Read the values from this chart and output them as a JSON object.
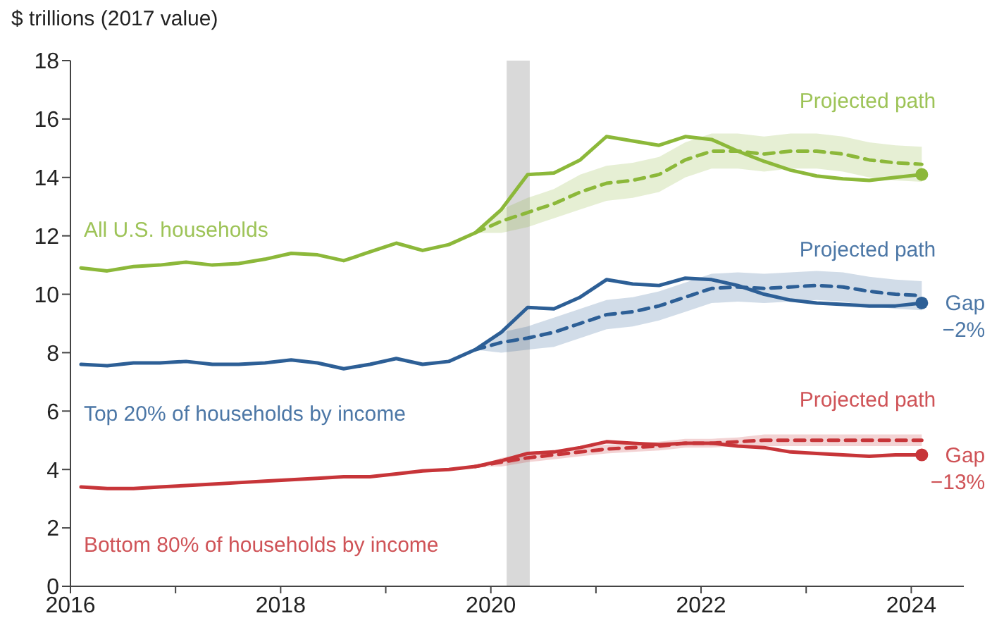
{
  "chart_data": {
    "type": "line",
    "ylabel": "$ trillions (2017 value)",
    "xlim": [
      2016,
      2024.5
    ],
    "xticks": [
      2016,
      {
        "value": 2017,
        "label": null
      },
      2018,
      {
        "value": 2019,
        "label": null
      },
      2020,
      {
        "value": 2021,
        "label": null
      },
      2022,
      {
        "value": 2023,
        "label": null
      },
      2024
    ],
    "ylim": [
      0,
      18
    ],
    "yticks": [
      0,
      2,
      4,
      6,
      8,
      10,
      12,
      14,
      16,
      18
    ],
    "grid": false,
    "legend": false,
    "bands": [
      {
        "axis": "x",
        "from": 2020.15,
        "to": 2020.37,
        "color": "#d9d9d9"
      }
    ],
    "series": [
      {
        "name": "All U.S. households",
        "type": "line",
        "color": "#8cb83a",
        "line_style": "solid",
        "x": [
          2016.1,
          2016.35,
          2016.6,
          2016.85,
          2017.1,
          2017.35,
          2017.6,
          2017.85,
          2018.1,
          2018.35,
          2018.6,
          2018.85,
          2019.1,
          2019.35,
          2019.6,
          2019.85,
          2020.1,
          2020.35,
          2020.6,
          2020.85,
          2021.1,
          2021.35,
          2021.6,
          2021.85,
          2022.1,
          2022.35,
          2022.6,
          2022.85,
          2023.1,
          2023.35,
          2023.6,
          2023.85,
          2024.1
        ],
        "values": [
          10.9,
          10.8,
          10.95,
          11.0,
          11.1,
          11.0,
          11.05,
          11.2,
          11.4,
          11.35,
          11.15,
          11.45,
          11.75,
          11.5,
          11.7,
          12.1,
          12.9,
          14.1,
          14.15,
          14.6,
          15.4,
          15.25,
          15.1,
          15.4,
          15.3,
          14.9,
          14.55,
          14.25,
          14.05,
          13.95,
          13.9,
          14.0,
          14.1
        ]
      },
      {
        "name": "Projected path",
        "type": "line",
        "color": "#8cb83a",
        "line_style": "dashed",
        "x": [
          2019.85,
          2020.1,
          2020.35,
          2020.6,
          2020.85,
          2021.1,
          2021.35,
          2021.6,
          2021.85,
          2022.1,
          2022.35,
          2022.6,
          2022.85,
          2023.1,
          2023.35,
          2023.6,
          2023.85,
          2024.1
        ],
        "values": [
          12.1,
          12.5,
          12.8,
          13.1,
          13.5,
          13.8,
          13.9,
          14.1,
          14.6,
          14.9,
          14.9,
          14.8,
          14.9,
          14.9,
          14.8,
          14.6,
          14.5,
          14.45
        ],
        "lower": [
          12.1,
          12.1,
          12.3,
          12.6,
          12.9,
          13.2,
          13.3,
          13.5,
          14.0,
          14.3,
          14.3,
          14.2,
          14.3,
          14.3,
          14.2,
          14.0,
          13.9,
          13.85
        ],
        "upper": [
          12.1,
          12.9,
          13.3,
          13.6,
          14.1,
          14.4,
          14.5,
          14.7,
          15.2,
          15.5,
          15.5,
          15.4,
          15.5,
          15.5,
          15.4,
          15.2,
          15.1,
          15.05
        ]
      },
      {
        "name": "Top 20% of households by income",
        "type": "line",
        "color": "#2d5f96",
        "line_style": "solid",
        "x": [
          2016.1,
          2016.35,
          2016.6,
          2016.85,
          2017.1,
          2017.35,
          2017.6,
          2017.85,
          2018.1,
          2018.35,
          2018.6,
          2018.85,
          2019.1,
          2019.35,
          2019.6,
          2019.85,
          2020.1,
          2020.35,
          2020.6,
          2020.85,
          2021.1,
          2021.35,
          2021.6,
          2021.85,
          2022.1,
          2022.35,
          2022.6,
          2022.85,
          2023.1,
          2023.35,
          2023.6,
          2023.85,
          2024.1
        ],
        "values": [
          7.6,
          7.55,
          7.65,
          7.65,
          7.7,
          7.6,
          7.6,
          7.65,
          7.75,
          7.65,
          7.45,
          7.6,
          7.8,
          7.6,
          7.7,
          8.1,
          8.7,
          9.55,
          9.5,
          9.9,
          10.5,
          10.35,
          10.3,
          10.55,
          10.5,
          10.3,
          10.0,
          9.8,
          9.7,
          9.65,
          9.6,
          9.6,
          9.7
        ]
      },
      {
        "name": "Projected path",
        "type": "line",
        "color": "#2d5f96",
        "line_style": "dashed",
        "x": [
          2019.85,
          2020.1,
          2020.35,
          2020.6,
          2020.85,
          2021.1,
          2021.35,
          2021.6,
          2021.85,
          2022.1,
          2022.35,
          2022.6,
          2022.85,
          2023.1,
          2023.35,
          2023.6,
          2023.85,
          2024.1
        ],
        "values": [
          8.1,
          8.35,
          8.5,
          8.7,
          9.0,
          9.3,
          9.4,
          9.6,
          9.9,
          10.2,
          10.25,
          10.2,
          10.25,
          10.3,
          10.25,
          10.1,
          10.0,
          9.95
        ],
        "lower": [
          8.1,
          8.0,
          8.1,
          8.2,
          8.5,
          8.8,
          8.9,
          9.1,
          9.4,
          9.7,
          9.75,
          9.7,
          9.75,
          9.8,
          9.75,
          9.6,
          9.5,
          9.45
        ],
        "upper": [
          8.1,
          8.7,
          8.9,
          9.2,
          9.5,
          9.8,
          9.9,
          10.1,
          10.4,
          10.7,
          10.75,
          10.7,
          10.75,
          10.8,
          10.75,
          10.6,
          10.5,
          10.45
        ]
      },
      {
        "name": "Bottom 80% of households by income",
        "type": "line",
        "color": "#c73539",
        "line_style": "solid",
        "x": [
          2016.1,
          2016.35,
          2016.6,
          2016.85,
          2017.1,
          2017.35,
          2017.6,
          2017.85,
          2018.1,
          2018.35,
          2018.6,
          2018.85,
          2019.1,
          2019.35,
          2019.6,
          2019.85,
          2020.1,
          2020.35,
          2020.6,
          2020.85,
          2021.1,
          2021.35,
          2021.6,
          2021.85,
          2022.1,
          2022.35,
          2022.6,
          2022.85,
          2023.1,
          2023.35,
          2023.6,
          2023.85,
          2024.1
        ],
        "values": [
          3.4,
          3.35,
          3.35,
          3.4,
          3.45,
          3.5,
          3.55,
          3.6,
          3.65,
          3.7,
          3.75,
          3.75,
          3.85,
          3.95,
          4.0,
          4.1,
          4.3,
          4.55,
          4.6,
          4.75,
          4.95,
          4.9,
          4.85,
          4.9,
          4.9,
          4.8,
          4.75,
          4.6,
          4.55,
          4.5,
          4.45,
          4.5,
          4.5
        ]
      },
      {
        "name": "Projected path",
        "type": "line",
        "color": "#c73539",
        "line_style": "dashed",
        "x": [
          2019.85,
          2020.1,
          2020.35,
          2020.6,
          2020.85,
          2021.1,
          2021.35,
          2021.6,
          2021.85,
          2022.1,
          2022.35,
          2022.6,
          2022.85,
          2023.1,
          2023.35,
          2023.6,
          2023.85,
          2024.1
        ],
        "values": [
          4.1,
          4.25,
          4.4,
          4.5,
          4.6,
          4.7,
          4.75,
          4.8,
          4.9,
          4.9,
          4.95,
          5.0,
          5.0,
          5.0,
          5.0,
          5.0,
          5.0,
          5.0
        ],
        "lower": [
          4.1,
          4.1,
          4.25,
          4.35,
          4.45,
          4.55,
          4.6,
          4.65,
          4.75,
          4.75,
          4.8,
          4.8,
          4.8,
          4.8,
          4.8,
          4.8,
          4.8,
          4.8
        ],
        "upper": [
          4.1,
          4.4,
          4.55,
          4.65,
          4.75,
          4.85,
          4.9,
          4.95,
          5.05,
          5.05,
          5.1,
          5.2,
          5.2,
          5.2,
          5.2,
          5.2,
          5.2,
          5.2
        ]
      },
      {
        "type": "scatter",
        "color": "#8cb83a",
        "marker": "circle",
        "x": [
          2024.1
        ],
        "values": [
          14.1
        ]
      },
      {
        "type": "scatter",
        "color": "#2d5f96",
        "marker": "circle",
        "x": [
          2024.1
        ],
        "values": [
          9.7
        ]
      },
      {
        "type": "scatter",
        "color": "#c73539",
        "marker": "circle",
        "x": [
          2024.1
        ],
        "values": [
          4.5
        ]
      }
    ],
    "annotations": [
      {
        "text": "Gap\n−2%",
        "x": 2024.1,
        "y": 9.7
      },
      {
        "text": "Gap\n−13%",
        "x": 2024.1,
        "y": 4.5
      }
    ]
  }
}
